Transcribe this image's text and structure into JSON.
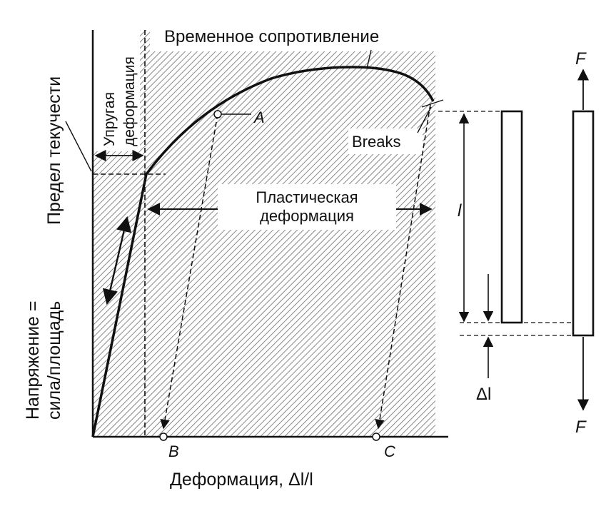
{
  "labels": {
    "ultimate_strength": "Временное сопротивление",
    "yield_point": "Предел текучести",
    "elastic_line1": "Упругая",
    "elastic_line2": "деформация",
    "plastic_line1": "Пластическая",
    "plastic_line2": "деформация",
    "breaks": "Breaks",
    "point_a": "A",
    "point_b": "B",
    "point_c": "C",
    "y_axis_line1": "Напряжение =",
    "y_axis_line2": "сила/площадь",
    "x_axis": "Деформация, Δl/l",
    "length_l": "l",
    "delta_l": "Δl",
    "force_top": "F",
    "force_bottom": "F"
  },
  "colors": {
    "ink": "#111111",
    "hatch": "#6a6a6a",
    "background": "#ffffff"
  }
}
